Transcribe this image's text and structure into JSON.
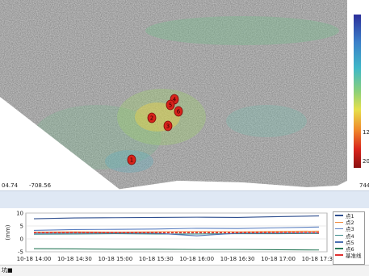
{
  "viewer": {
    "coord_left": "04.74",
    "coord_right": "-708.56",
    "coord_far_right": "744",
    "colorbar_labels": [
      "12",
      "20"
    ],
    "colorbar_colors": [
      "#2c2f9a",
      "#3b7fc9",
      "#3fb8c8",
      "#8ad07a",
      "#e6e04a",
      "#f08a2c",
      "#d8241c",
      "#8a1010"
    ],
    "markers": [
      {
        "label": "1",
        "color": "#d8231b"
      },
      {
        "label": "2",
        "color": "#d8231b"
      },
      {
        "label": "3",
        "color": "#d8231b"
      },
      {
        "label": "4",
        "color": "#d8231b"
      },
      {
        "label": "5",
        "color": "#d8231b"
      },
      {
        "label": "6",
        "color": "#d8231b"
      }
    ]
  },
  "chart_data": {
    "type": "line",
    "ylabel": "(mm)",
    "ylim": [
      -5,
      10
    ],
    "yticks": [
      10,
      5,
      0,
      -5
    ],
    "x": [
      "10-18 14:00",
      "10-18 14:30",
      "10-18 15:00",
      "10-18 15:30",
      "10-18 16:00",
      "10-18 16:30",
      "10-18 17:00",
      "10-18 17:30"
    ],
    "series": [
      {
        "name": "点1",
        "color": "#2f4f8f",
        "values": [
          7.8,
          8.1,
          8.2,
          8.3,
          8.4,
          8.3,
          8.6,
          8.9
        ]
      },
      {
        "name": "点2",
        "color": "#f0883a",
        "values": [
          2.6,
          2.7,
          2.6,
          2.7,
          2.8,
          2.7,
          2.9,
          3.0
        ]
      },
      {
        "name": "点3",
        "color": "#5a7fc0",
        "values": [
          3.3,
          3.6,
          3.7,
          3.8,
          4.1,
          4.0,
          4.3,
          4.6
        ]
      },
      {
        "name": "点4",
        "color": "#3a8a8a",
        "values": [
          1.8,
          1.9,
          2.0,
          1.9,
          1.9,
          2.0,
          2.0,
          2.1
        ]
      },
      {
        "name": "点5",
        "color": "#4a6fb0",
        "values": [
          2.2,
          2.3,
          2.3,
          2.2,
          1.2,
          2.2,
          2.3,
          2.4
        ]
      },
      {
        "name": "点6",
        "color": "#2a7a5a",
        "values": [
          -3.8,
          -3.9,
          -4.0,
          -4.0,
          -4.1,
          -4.1,
          -4.2,
          -4.3
        ]
      },
      {
        "name": "基准线",
        "color": "#e03030",
        "values": [
          2.4,
          2.4,
          2.4,
          2.4,
          2.4,
          2.4,
          2.4,
          2.4
        ]
      }
    ]
  },
  "footer": {
    "label": "坑■"
  }
}
